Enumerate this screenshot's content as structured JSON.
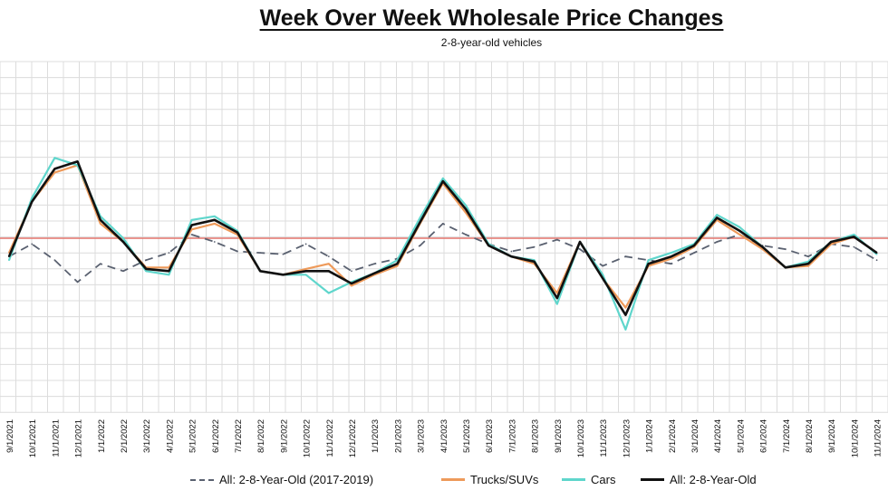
{
  "chart_data": {
    "type": "line",
    "title": "Week Over Week Wholesale Price Changes",
    "subtitle": "2-8-year-old vehicles",
    "xlabel": "",
    "ylabel": "",
    "y_axis_labels_visible": false,
    "grid": true,
    "legend_position": "bottom",
    "reference_line": {
      "y": 0,
      "color": "#e3746b"
    },
    "categories": [
      "9/1/2021",
      "10/1/2021",
      "11/1/2021",
      "12/1/2021",
      "1/1/2022",
      "2/1/2022",
      "3/1/2022",
      "4/1/2022",
      "5/1/2022",
      "6/1/2022",
      "7/1/2022",
      "8/1/2022",
      "9/1/2022",
      "10/1/2022",
      "11/1/2022",
      "12/1/2022",
      "1/1/2023",
      "2/1/2023",
      "3/1/2023",
      "4/1/2023",
      "5/1/2023",
      "6/1/2023",
      "7/1/2023",
      "8/1/2023",
      "9/1/2023",
      "10/1/2023",
      "11/1/2023",
      "12/1/2023",
      "1/1/2024",
      "2/1/2024",
      "3/1/2024",
      "4/1/2024",
      "5/1/2024",
      "6/1/2024",
      "7/1/2024",
      "8/1/2024",
      "9/1/2024",
      "10/1/2024",
      "11/1/2024"
    ],
    "tick_labels": [
      "9/1/2021",
      "10/1/2021",
      "11/1/2021",
      "12/1/2021",
      "1/1/2022",
      "2/1/2022",
      "3/1/2022",
      "4/1/2022",
      "5/1/2022",
      "6/1/2022",
      "7/1/2022",
      "8/1/2022",
      "9/1/2022",
      "10/1/2022",
      "11/1/2022",
      "12/1/2022",
      "1/1/2023",
      "2/1/2023",
      "3/1/2023",
      "4/1/2023",
      "5/1/2023",
      "6/1/2023",
      "7/1/2023",
      "8/1/2023",
      "9/1/2023",
      "10/1/2023",
      "11/1/2023",
      "12/1/2023",
      "1/1/2024",
      "2/1/2024",
      "3/1/2024",
      "4/1/2024",
      "5/1/2024",
      "6/1/2024",
      "7/1/2024",
      "8/1/2024",
      "9/1/2024",
      "10/1/2024",
      "11/1/2024"
    ],
    "ylim": [
      -1.8,
      1.8
    ],
    "series": [
      {
        "name": "All: 2-8-Year-Old (2017-2019)",
        "color": "#5a6170",
        "style": "dashed",
        "values": [
          -0.25,
          -0.08,
          -0.3,
          -0.6,
          -0.35,
          -0.45,
          -0.3,
          -0.2,
          0.05,
          -0.05,
          -0.18,
          -0.2,
          -0.22,
          -0.08,
          -0.25,
          -0.45,
          -0.35,
          -0.28,
          -0.1,
          0.2,
          0.05,
          -0.08,
          -0.18,
          -0.12,
          -0.02,
          -0.15,
          -0.38,
          -0.25,
          -0.3,
          -0.35,
          -0.2,
          -0.05,
          0.05,
          -0.1,
          -0.15,
          -0.25,
          -0.08,
          -0.12,
          -0.3
        ]
      },
      {
        "name": "Trucks/SUVs",
        "color": "#ee9a5a",
        "style": "solid",
        "values": [
          -0.2,
          0.5,
          0.9,
          1.0,
          0.2,
          -0.05,
          -0.4,
          -0.4,
          0.12,
          0.2,
          0.05,
          -0.45,
          -0.5,
          -0.42,
          -0.35,
          -0.65,
          -0.5,
          -0.38,
          0.2,
          0.75,
          0.35,
          -0.1,
          -0.25,
          -0.35,
          -0.75,
          -0.05,
          -0.55,
          -0.95,
          -0.38,
          -0.28,
          -0.12,
          0.25,
          0.05,
          -0.15,
          -0.4,
          -0.38,
          -0.08,
          0.02,
          -0.2
        ]
      },
      {
        "name": "Cars",
        "color": "#5fd6cc",
        "style": "solid",
        "values": [
          -0.3,
          0.55,
          1.1,
          1.0,
          0.3,
          0.0,
          -0.45,
          -0.5,
          0.25,
          0.3,
          0.1,
          -0.45,
          -0.5,
          -0.5,
          -0.75,
          -0.6,
          -0.48,
          -0.3,
          0.28,
          0.82,
          0.45,
          -0.08,
          -0.25,
          -0.3,
          -0.9,
          -0.05,
          -0.5,
          -1.25,
          -0.3,
          -0.2,
          -0.08,
          0.32,
          0.15,
          -0.12,
          -0.4,
          -0.32,
          -0.05,
          0.05,
          -0.22
        ]
      },
      {
        "name": "All: 2-8-Year-Old",
        "color": "#111111",
        "style": "solid",
        "values": [
          -0.25,
          0.5,
          0.95,
          1.05,
          0.25,
          -0.05,
          -0.42,
          -0.45,
          0.18,
          0.25,
          0.08,
          -0.45,
          -0.5,
          -0.45,
          -0.45,
          -0.62,
          -0.48,
          -0.35,
          0.22,
          0.78,
          0.4,
          -0.1,
          -0.25,
          -0.32,
          -0.82,
          -0.05,
          -0.55,
          -1.05,
          -0.35,
          -0.25,
          -0.1,
          0.28,
          0.1,
          -0.12,
          -0.4,
          -0.35,
          -0.05,
          0.02,
          -0.2
        ]
      }
    ]
  }
}
